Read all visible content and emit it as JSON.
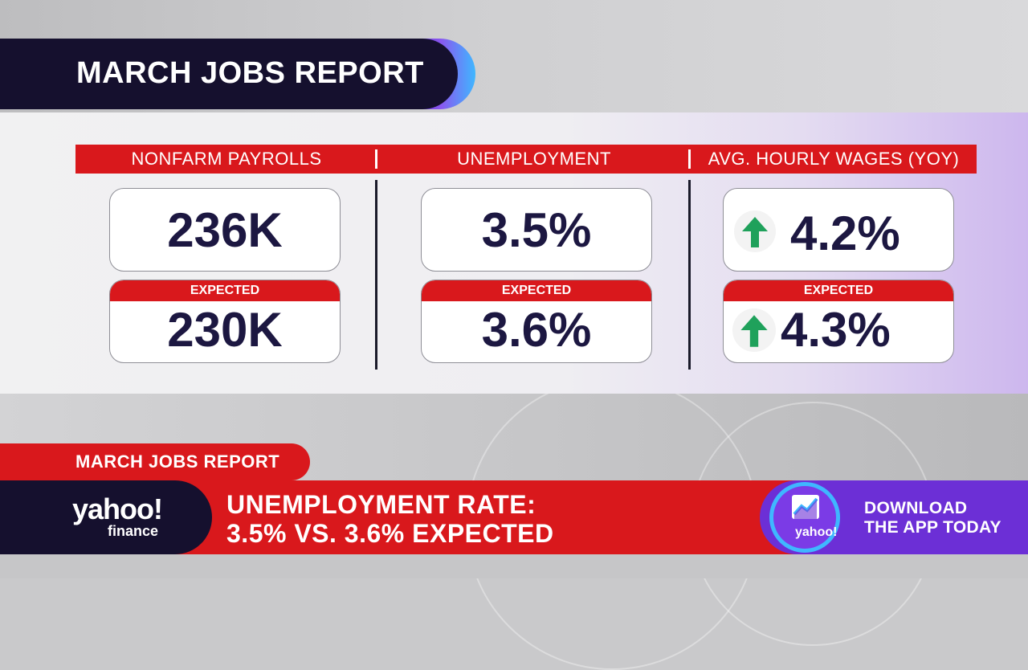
{
  "title": "MARCH JOBS REPORT",
  "metrics": [
    {
      "label": "NONFARM PAYROLLS",
      "actual": "236K",
      "expected_label": "EXPECTED",
      "expected": "230K",
      "trend": ""
    },
    {
      "label": "UNEMPLOYMENT",
      "actual": "3.5%",
      "expected_label": "EXPECTED",
      "expected": "3.6%",
      "trend": ""
    },
    {
      "label": "AVG. HOURLY WAGES (YOY)",
      "actual": "4.2%",
      "expected_label": "EXPECTED",
      "expected": "4.3%",
      "trend": "up-arrow-icon"
    }
  ],
  "lower_third": {
    "tag": "MARCH JOBS REPORT",
    "headline_line1": "UNEMPLOYMENT RATE:",
    "headline_line2": "3.5% VS. 3.6% EXPECTED",
    "logo_main": "yahoo!",
    "logo_sub": "finance",
    "app_logo": "yahoo!",
    "app_cta_line1": "DOWNLOAD",
    "app_cta_line2": "THE APP TODAY"
  },
  "colors": {
    "accent_red": "#d9181c",
    "navy": "#15102e",
    "value_text": "#1c1741",
    "up_green": "#1fa15b",
    "purple": "#6c2fd6",
    "cyan_glow": "#3fb7ff"
  }
}
